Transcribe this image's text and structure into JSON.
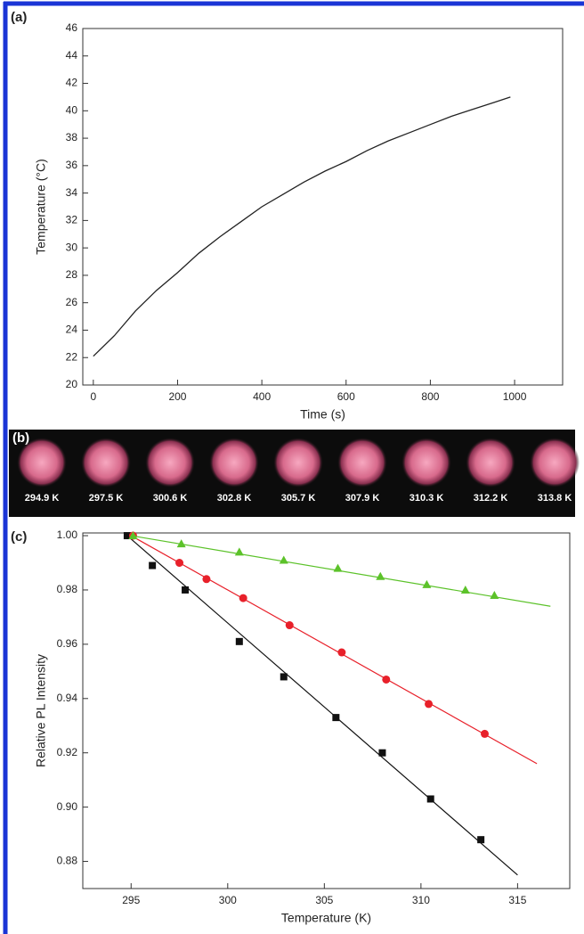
{
  "chart_data": [
    {
      "type": "line",
      "panel_label": "(a)",
      "x_label": "Time (s)",
      "y_label": "Temperature (°C)",
      "x": [
        0,
        50,
        100,
        150,
        200,
        250,
        300,
        350,
        400,
        450,
        500,
        550,
        600,
        650,
        700,
        750,
        800,
        850,
        900,
        950,
        990
      ],
      "values": [
        22.1,
        23.6,
        25.4,
        26.9,
        28.2,
        29.6,
        30.8,
        31.9,
        33.0,
        33.9,
        34.8,
        35.6,
        36.3,
        37.1,
        37.8,
        38.4,
        39.0,
        39.6,
        40.1,
        40.6,
        41.0
      ],
      "color": "#222222",
      "xlim": [
        -25,
        1114
      ],
      "ylim": [
        20,
        46
      ],
      "xticks": [
        0,
        200,
        400,
        600,
        800,
        1000
      ],
      "yticks": [
        20,
        22,
        24,
        26,
        28,
        30,
        32,
        34,
        36,
        38,
        40,
        42,
        44,
        46
      ]
    },
    {
      "type": "scatter",
      "panel_label": "(c)",
      "x_label": "Temperature (K)",
      "y_label": "Relative PL Intensity",
      "xlim": [
        292.5,
        317.7
      ],
      "ylim": [
        0.87,
        1.001
      ],
      "xticks": [
        295,
        300,
        305,
        310,
        315
      ],
      "yticks": [
        0.88,
        {
          "value": 0.9,
          "label": "0.90"
        },
        0.92,
        0.94,
        0.96,
        0.98,
        {
          "value": 1,
          "label": "1.00"
        }
      ],
      "series": [
        {
          "color": "#111111",
          "marker": "square",
          "x": [
            294.8,
            296.1,
            297.8,
            300.6,
            302.9,
            305.6,
            308.0,
            310.5,
            313.1
          ],
          "values": [
            1.0,
            0.989,
            0.98,
            0.961,
            0.948,
            0.933,
            0.92,
            0.903,
            0.888
          ],
          "fit_x": [
            294.8,
            315.0
          ],
          "fit_values": [
            1.0,
            0.875
          ]
        },
        {
          "color": "#e8202a",
          "marker": "circle",
          "x": [
            295.1,
            297.5,
            298.9,
            300.8,
            303.2,
            305.9,
            308.2,
            310.4,
            313.3
          ],
          "values": [
            1.0,
            0.99,
            0.984,
            0.977,
            0.967,
            0.957,
            0.947,
            0.938,
            0.927
          ],
          "fit_x": [
            295.0,
            316.0
          ],
          "fit_values": [
            1.0,
            0.916
          ]
        },
        {
          "color": "#5cc22a",
          "marker": "triangle",
          "x": [
            295.1,
            297.6,
            300.6,
            302.9,
            305.7,
            307.9,
            310.3,
            312.3,
            313.8
          ],
          "values": [
            1.0,
            0.997,
            0.994,
            0.991,
            0.988,
            0.985,
            0.982,
            0.98,
            0.978
          ],
          "fit_x": [
            295.0,
            316.7
          ],
          "fit_values": [
            1.0,
            0.974
          ]
        }
      ]
    }
  ],
  "strip": {
    "panel_label": "(b)",
    "labels": [
      "294.9 K",
      "297.5 K",
      "300.6 K",
      "302.8 K",
      "305.7 K",
      "307.9 K",
      "310.3 K",
      "312.2 K",
      "313.8 K"
    ]
  }
}
